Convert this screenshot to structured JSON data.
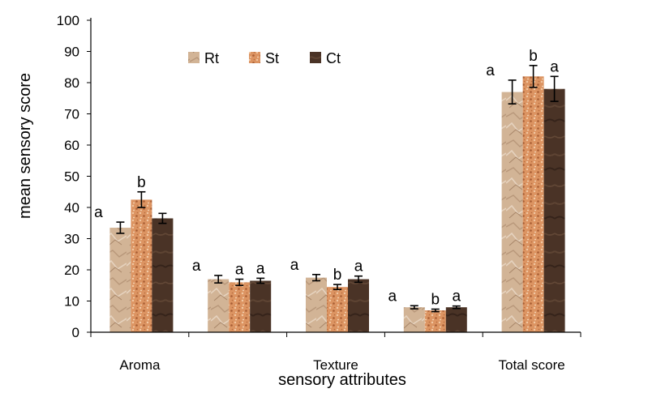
{
  "chart_data": {
    "type": "bar",
    "title": "",
    "xlabel": "sensory attributes",
    "ylabel": "mean sensory score",
    "ylim": [
      0,
      100
    ],
    "yticks": [
      0,
      10,
      20,
      30,
      40,
      50,
      60,
      70,
      80,
      90,
      100
    ],
    "grid": false,
    "legend_position": "top-left",
    "categories": [
      "Aroma",
      "",
      "Texture",
      "",
      "Total score"
    ],
    "series": [
      {
        "name": "Rt",
        "color": "#d4b79a",
        "values": [
          33.5,
          17.0,
          17.5,
          8.0,
          77.0
        ],
        "errors": [
          1.8,
          1.2,
          1.0,
          0.5,
          3.8
        ],
        "significance": [
          "a",
          "a",
          "a",
          "a",
          "a"
        ]
      },
      {
        "name": "St",
        "color": "#d98f5c",
        "values": [
          42.5,
          16.0,
          14.5,
          7.0,
          82.0
        ],
        "errors": [
          2.5,
          1.0,
          0.8,
          0.4,
          3.5
        ],
        "significance": [
          "b",
          "a",
          "b",
          "b",
          "b"
        ]
      },
      {
        "name": "Ct",
        "color": "#4a3326",
        "values": [
          36.5,
          16.5,
          17.0,
          8.0,
          78.0
        ],
        "errors": [
          1.6,
          0.8,
          1.0,
          0.4,
          4.0
        ],
        "significance": [
          "",
          "a",
          "a",
          "a",
          "a"
        ]
      }
    ]
  }
}
